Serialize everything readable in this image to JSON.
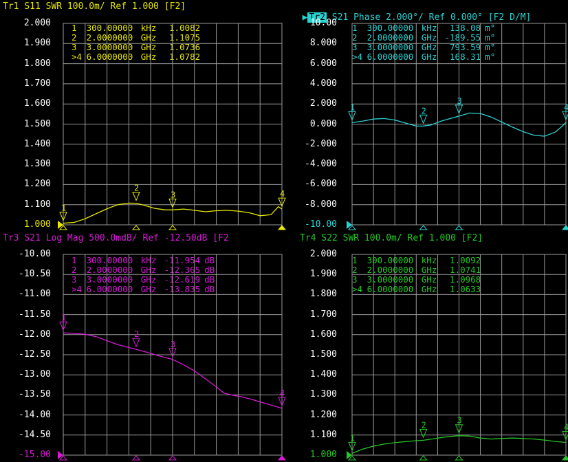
{
  "colors": {
    "tr1": "#e8e800",
    "tr2": "#29d3d3",
    "tr3": "#d61ad6",
    "tr4": "#26c626",
    "grid": "#9a9a9a",
    "axis_text": "#ffffff",
    "background": "#000000"
  },
  "traces": [
    {
      "id": "tr1",
      "title": "Tr1 S11 SWR 100.0m/ Ref 1.000 [F2]",
      "markers": [
        {
          "num": "1",
          "freq": "300.00000",
          "unit": "kHz",
          "value": "1.0082",
          "vunit": ""
        },
        {
          "num": "2",
          "freq": "2.0000000",
          "unit": "GHz",
          "value": "1.1075",
          "vunit": ""
        },
        {
          "num": "3",
          "freq": "3.0000000",
          "unit": "GHz",
          "value": "1.0736",
          "vunit": ""
        },
        {
          "num": ">4",
          "freq": "6.0000000",
          "unit": "GHz",
          "value": "1.0782",
          "vunit": ""
        }
      ]
    },
    {
      "id": "tr2",
      "title_active": "Tr2",
      "title": " S21 Phase 2.000°/ Ref 0.000° [F2 D/M]",
      "markers": [
        {
          "num": "1",
          "freq": "300.00000",
          "unit": "kHz",
          "value": "138.08",
          "vunit": "m°"
        },
        {
          "num": "2",
          "freq": "2.0000000",
          "unit": "GHz",
          "value": "-189.55",
          "vunit": "m°"
        },
        {
          "num": "3",
          "freq": "3.0000000",
          "unit": "GHz",
          "value": "793.59",
          "vunit": "m°"
        },
        {
          "num": ">4",
          "freq": "6.0000000",
          "unit": "GHz",
          "value": "168.31",
          "vunit": "m°"
        }
      ]
    },
    {
      "id": "tr3",
      "title": "Tr3 S21 Log Mag 500.0mdB/ Ref -12.50dB [F2",
      "markers": [
        {
          "num": "1",
          "freq": "300.00000",
          "unit": "kHz",
          "value": "-11.954",
          "vunit": "dB"
        },
        {
          "num": "2",
          "freq": "2.0000000",
          "unit": "GHz",
          "value": "-12.365",
          "vunit": "dB"
        },
        {
          "num": "3",
          "freq": "3.0000000",
          "unit": "GHz",
          "value": "-12.619",
          "vunit": "dB"
        },
        {
          "num": ">4",
          "freq": "6.0000000",
          "unit": "GHz",
          "value": "-13.835",
          "vunit": "dB"
        }
      ]
    },
    {
      "id": "tr4",
      "title": "Tr4 S22 SWR 100.0m/ Ref 1.000 [F2]",
      "markers": [
        {
          "num": "1",
          "freq": "300.00000",
          "unit": "kHz",
          "value": "1.0092",
          "vunit": ""
        },
        {
          "num": "2",
          "freq": "2.0000000",
          "unit": "GHz",
          "value": "1.0741",
          "vunit": ""
        },
        {
          "num": "3",
          "freq": "3.0000000",
          "unit": "GHz",
          "value": "1.0968",
          "vunit": ""
        },
        {
          "num": ">4",
          "freq": "6.0000000",
          "unit": "GHz",
          "value": "1.0633",
          "vunit": ""
        }
      ]
    }
  ],
  "chart_data": [
    {
      "type": "line",
      "trace": "Tr1",
      "xlim": [
        0.0003,
        6
      ],
      "ylim": [
        1.0,
        2.0
      ],
      "yticks": [
        "2.000",
        "1.900",
        "1.800",
        "1.700",
        "1.600",
        "1.500",
        "1.400",
        "1.300",
        "1.200",
        "1.100",
        "1.000"
      ],
      "grid": true,
      "markers_x": [
        0.0003,
        2,
        3,
        6
      ],
      "markers_y": [
        1.0082,
        1.1075,
        1.0736,
        1.0782
      ],
      "x": [
        0.0003,
        0.3,
        0.6,
        0.9,
        1.2,
        1.5,
        1.8,
        2.0,
        2.2,
        2.5,
        2.8,
        3.0,
        3.3,
        3.6,
        3.9,
        4.2,
        4.5,
        4.8,
        5.1,
        5.4,
        5.7,
        5.9,
        6.0
      ],
      "y": [
        1.008,
        1.012,
        1.03,
        1.055,
        1.08,
        1.1,
        1.108,
        1.107,
        1.098,
        1.082,
        1.074,
        1.074,
        1.078,
        1.072,
        1.065,
        1.07,
        1.072,
        1.068,
        1.06,
        1.045,
        1.05,
        1.09,
        1.078
      ]
    },
    {
      "type": "line",
      "trace": "Tr2",
      "xlim": [
        0.0003,
        6
      ],
      "ylim": [
        -10,
        10
      ],
      "yticks": [
        "10.00",
        "8.000",
        "6.000",
        "4.000",
        "2.000",
        "0.000",
        "-2.000",
        "-4.000",
        "-6.000",
        "-8.000",
        "-10.00"
      ],
      "grid": true,
      "markers_x": [
        0.0003,
        2,
        3,
        6
      ],
      "markers_y": [
        0.138,
        -0.19,
        0.794,
        0.168
      ],
      "x": [
        0.0003,
        0.3,
        0.6,
        0.9,
        1.2,
        1.5,
        1.8,
        2.0,
        2.2,
        2.5,
        2.8,
        3.0,
        3.3,
        3.6,
        3.9,
        4.2,
        4.5,
        4.8,
        5.1,
        5.4,
        5.7,
        5.9,
        6.0
      ],
      "y": [
        0.14,
        0.3,
        0.5,
        0.55,
        0.4,
        0.1,
        -0.2,
        -0.19,
        -0.1,
        0.3,
        0.6,
        0.79,
        1.1,
        1.05,
        0.7,
        0.2,
        -0.3,
        -0.75,
        -1.1,
        -1.2,
        -0.8,
        -0.2,
        0.17
      ]
    },
    {
      "type": "line",
      "trace": "Tr3",
      "xlim": [
        0.0003,
        6
      ],
      "ylim": [
        -15,
        -10
      ],
      "yticks": [
        "-10.00",
        "-10.50",
        "-11.00",
        "-11.50",
        "-12.00",
        "-12.50",
        "-13.00",
        "-13.50",
        "-14.00",
        "-14.50",
        "-15.00"
      ],
      "grid": true,
      "markers_x": [
        0.0003,
        2,
        3,
        6
      ],
      "markers_y": [
        -11.954,
        -12.365,
        -12.619,
        -13.835
      ],
      "x": [
        0.0003,
        0.3,
        0.6,
        0.9,
        1.2,
        1.5,
        1.8,
        2.0,
        2.3,
        2.6,
        3.0,
        3.3,
        3.6,
        3.9,
        4.2,
        4.4,
        4.6,
        4.9,
        5.2,
        5.5,
        5.8,
        6.0
      ],
      "y": [
        -11.954,
        -11.97,
        -11.99,
        -12.05,
        -12.15,
        -12.25,
        -12.32,
        -12.365,
        -12.44,
        -12.52,
        -12.619,
        -12.75,
        -12.9,
        -13.1,
        -13.3,
        -13.45,
        -13.5,
        -13.55,
        -13.62,
        -13.7,
        -13.78,
        -13.835
      ]
    },
    {
      "type": "line",
      "trace": "Tr4",
      "xlim": [
        0.0003,
        6
      ],
      "ylim": [
        1.0,
        2.0
      ],
      "yticks": [
        "2.000",
        "1.900",
        "1.800",
        "1.700",
        "1.600",
        "1.500",
        "1.400",
        "1.300",
        "1.200",
        "1.100",
        "1.000"
      ],
      "grid": true,
      "markers_x": [
        0.0003,
        2,
        3,
        6
      ],
      "markers_y": [
        1.0092,
        1.0741,
        1.0968,
        1.0633
      ],
      "x": [
        0.0003,
        0.3,
        0.6,
        0.9,
        1.2,
        1.5,
        1.8,
        2.0,
        2.3,
        2.6,
        3.0,
        3.3,
        3.6,
        3.9,
        4.2,
        4.5,
        4.8,
        5.1,
        5.4,
        5.7,
        5.9,
        6.0
      ],
      "y": [
        1.009,
        1.03,
        1.045,
        1.055,
        1.062,
        1.067,
        1.072,
        1.074,
        1.082,
        1.09,
        1.097,
        1.095,
        1.085,
        1.08,
        1.083,
        1.085,
        1.083,
        1.08,
        1.075,
        1.068,
        1.065,
        1.063
      ]
    }
  ]
}
